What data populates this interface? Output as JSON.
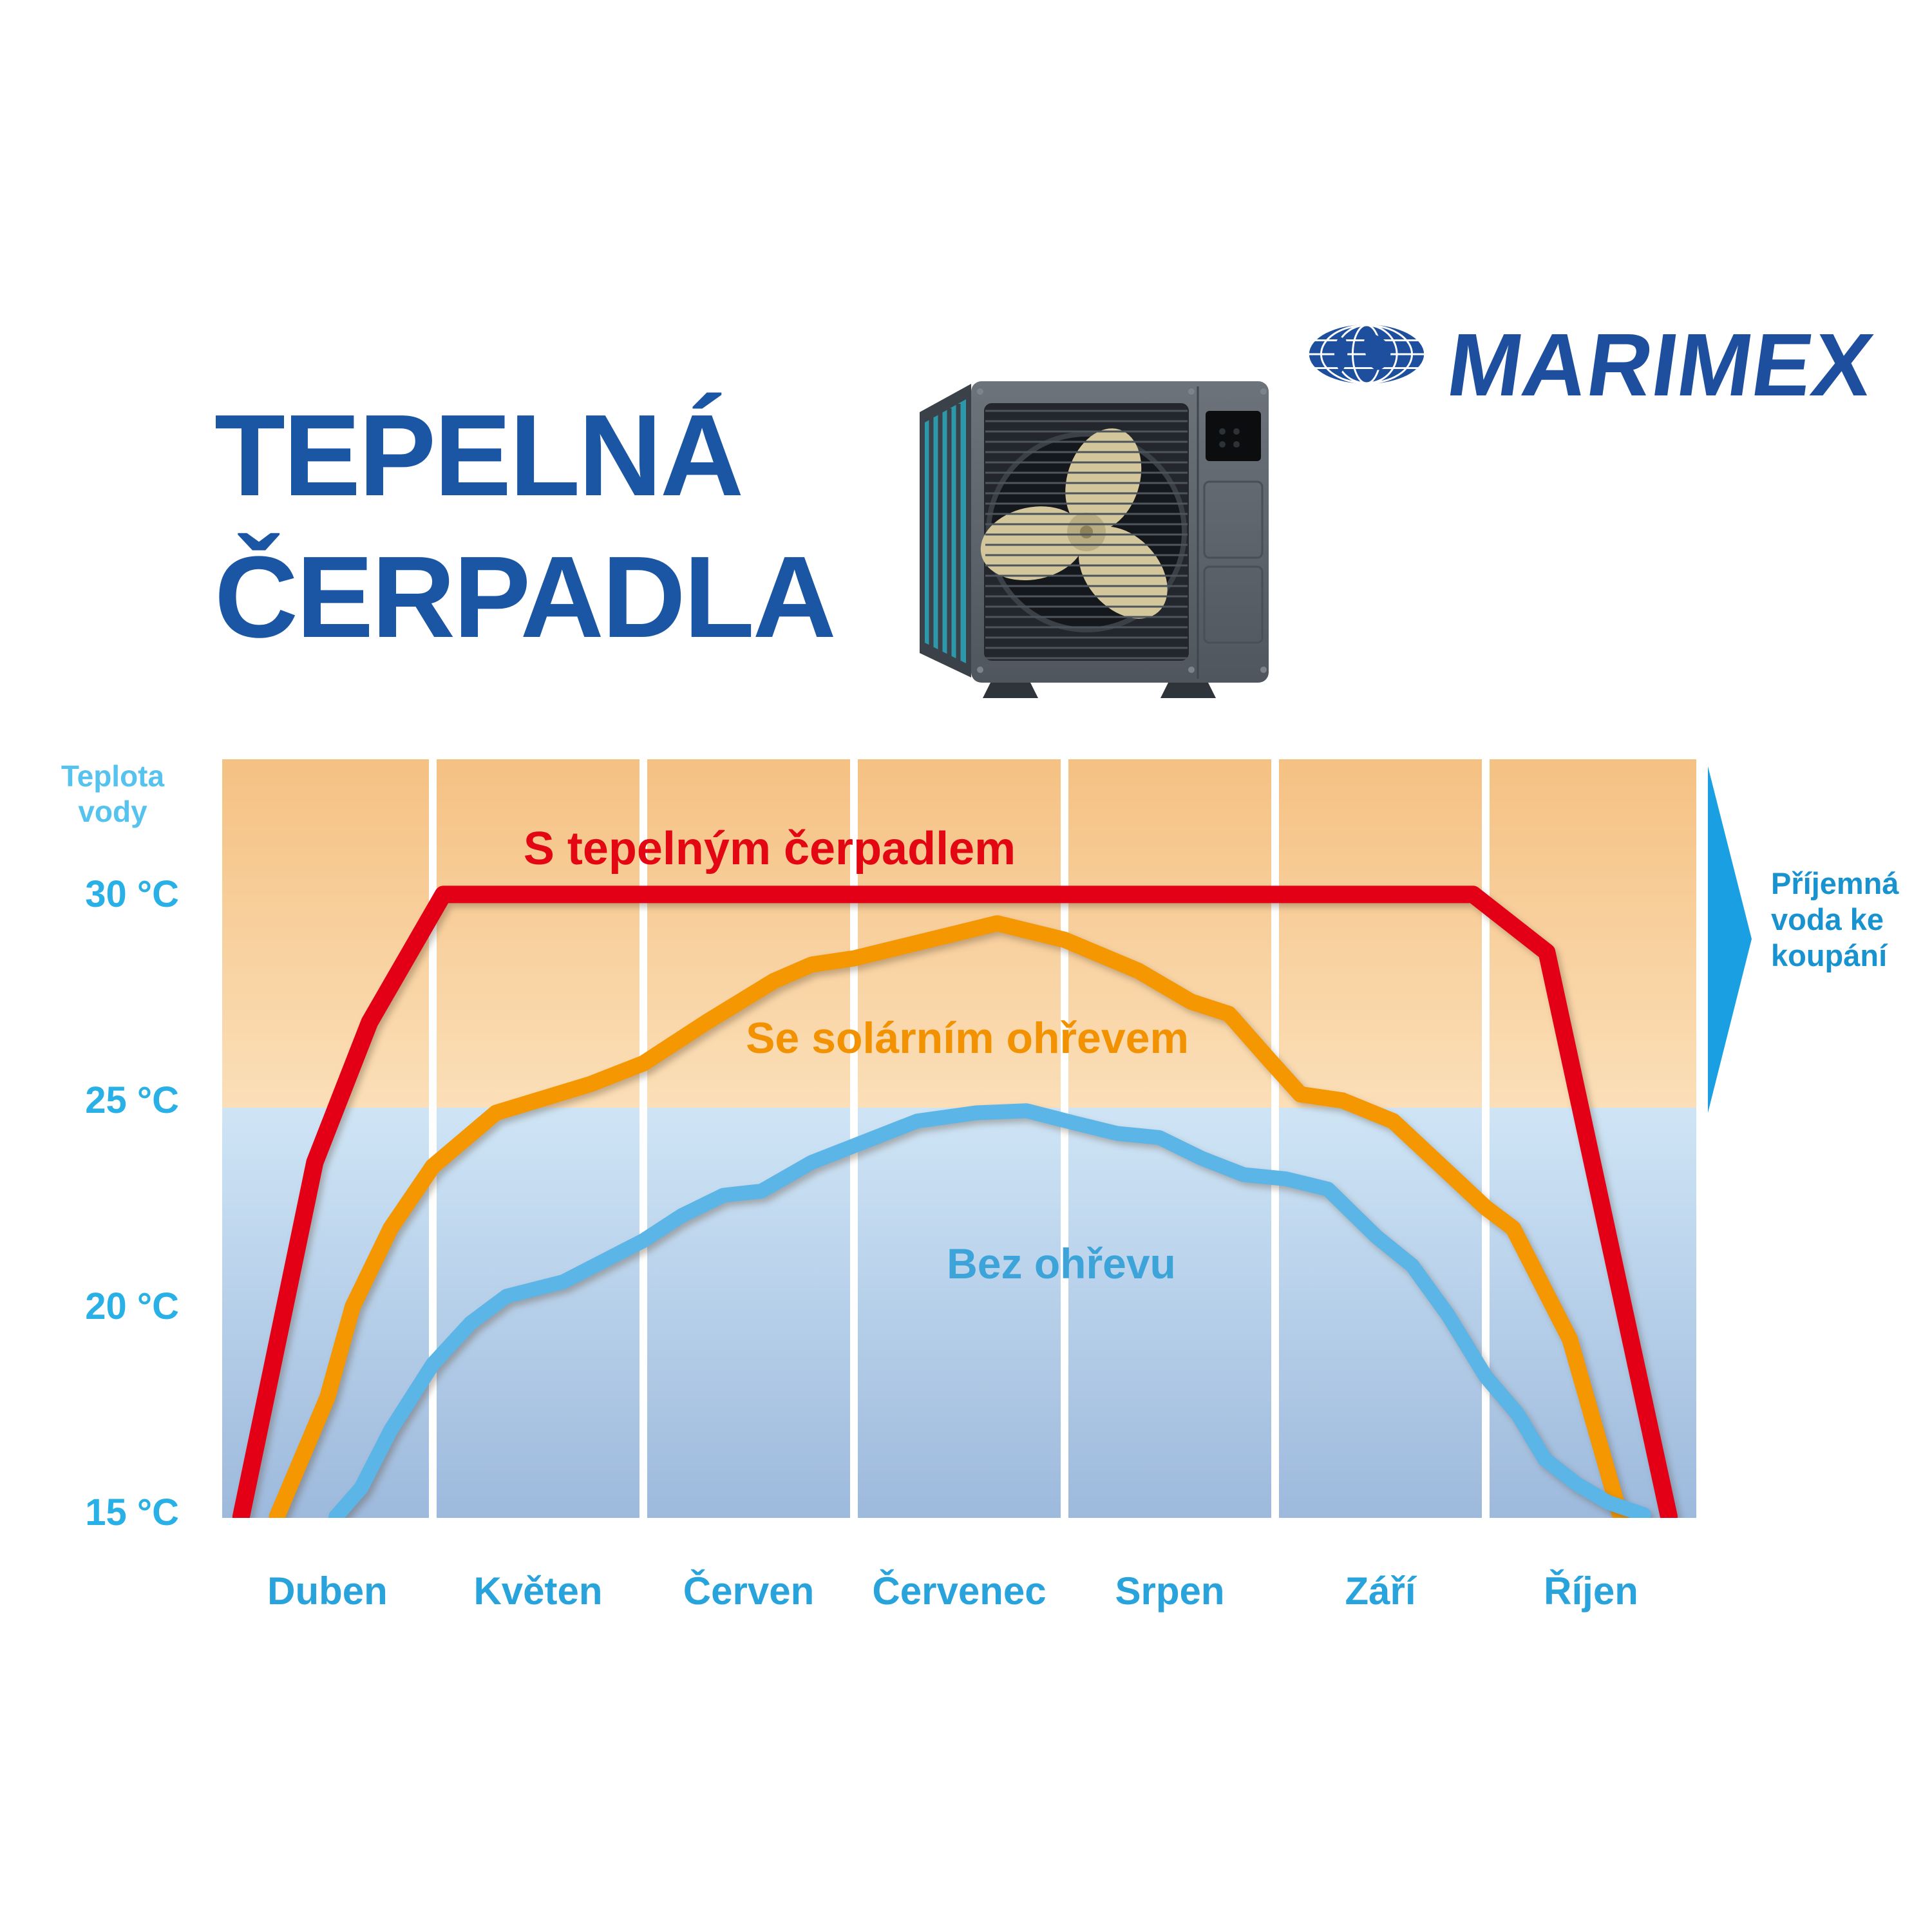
{
  "header": {
    "title_line1": "TEPELNÁ",
    "title_line2": "ČERPADLA",
    "title_color": "#1b56a4",
    "brand": "MARIMEX",
    "brand_color": "#1e4f9e"
  },
  "chart_data": {
    "type": "line",
    "title": "",
    "x_categories": [
      "Duben",
      "Květen",
      "Červen",
      "Červenec",
      "Srpen",
      "Září",
      "Říjen"
    ],
    "x_range_months": [
      0,
      7
    ],
    "y_axis": {
      "title_line1": "Teplota",
      "title_line2": "vody",
      "unit": "°C",
      "ticks": [
        {
          "label": "30 °C",
          "value": 30
        },
        {
          "label": "25 °C",
          "value": 25
        },
        {
          "label": "20 °C",
          "value": 20
        },
        {
          "label": "15 °C",
          "value": 15
        }
      ]
    },
    "y_range": [
      14.87,
      33.28
    ],
    "grid": "vertical-white-month-separators",
    "legend_position": "labels-on-chart",
    "background": {
      "boundary_temp": 24.83,
      "warm_top": "#f5c183",
      "warm_bottom": "#fbdfb8",
      "cool_top": "#cfe5f6",
      "cool_bottom": "#9db9dc"
    },
    "series": [
      {
        "name": "S tepelným čerpadlem",
        "color": "#e30016",
        "label_color": "#e30613",
        "stroke_width": 27,
        "points": [
          [
            0.09,
            14.9
          ],
          [
            0.44,
            23.5
          ],
          [
            0.7,
            26.9
          ],
          [
            1.05,
            30.0
          ],
          [
            3.5,
            30.0
          ],
          [
            5.94,
            30.0
          ],
          [
            6.29,
            28.6
          ],
          [
            6.87,
            14.9
          ]
        ]
      },
      {
        "name": "Se solárním ohřevem",
        "color": "#f49700",
        "label_color": "#f39200",
        "stroke_width": 25,
        "points": [
          [
            0.26,
            14.9
          ],
          [
            0.5,
            17.8
          ],
          [
            0.62,
            20.0
          ],
          [
            0.8,
            21.9
          ],
          [
            1.0,
            23.4
          ],
          [
            1.3,
            24.7
          ],
          [
            1.75,
            25.4
          ],
          [
            2.0,
            25.9
          ],
          [
            2.3,
            26.9
          ],
          [
            2.62,
            27.9
          ],
          [
            2.8,
            28.3
          ],
          [
            3.0,
            28.45
          ],
          [
            3.4,
            28.95
          ],
          [
            3.68,
            29.3
          ],
          [
            4.0,
            28.9
          ],
          [
            4.35,
            28.15
          ],
          [
            4.6,
            27.4
          ],
          [
            4.78,
            27.1
          ],
          [
            4.97,
            26.0
          ],
          [
            5.12,
            25.15
          ],
          [
            5.32,
            25.0
          ],
          [
            5.56,
            24.5
          ],
          [
            6.0,
            22.4
          ],
          [
            6.13,
            21.9
          ],
          [
            6.4,
            19.2
          ],
          [
            6.64,
            14.9
          ]
        ]
      },
      {
        "name": "Bez ohřevu",
        "color": "#5bb5e6",
        "label_color": "#3da4d9",
        "stroke_width": 23,
        "points": [
          [
            0.54,
            14.9
          ],
          [
            0.66,
            15.6
          ],
          [
            0.8,
            17.0
          ],
          [
            1.0,
            18.6
          ],
          [
            1.18,
            19.6
          ],
          [
            1.35,
            20.25
          ],
          [
            1.62,
            20.6
          ],
          [
            2.0,
            21.6
          ],
          [
            2.18,
            22.2
          ],
          [
            2.38,
            22.7
          ],
          [
            2.56,
            22.8
          ],
          [
            2.8,
            23.5
          ],
          [
            3.0,
            23.9
          ],
          [
            3.3,
            24.5
          ],
          [
            3.58,
            24.7
          ],
          [
            3.82,
            24.75
          ],
          [
            4.05,
            24.45
          ],
          [
            4.25,
            24.2
          ],
          [
            4.45,
            24.1
          ],
          [
            4.65,
            23.6
          ],
          [
            4.85,
            23.2
          ],
          [
            5.05,
            23.1
          ],
          [
            5.25,
            22.85
          ],
          [
            5.48,
            21.7
          ],
          [
            5.65,
            21.0
          ],
          [
            5.82,
            19.8
          ],
          [
            6.0,
            18.3
          ],
          [
            6.15,
            17.4
          ],
          [
            6.28,
            16.3
          ],
          [
            6.43,
            15.7
          ],
          [
            6.58,
            15.25
          ],
          [
            6.75,
            14.95
          ]
        ]
      }
    ],
    "annotation_arrow": {
      "lines": [
        "Příjemná",
        "voda ke",
        "koupání"
      ],
      "text_color": "#1893d0",
      "arrow_color": "#1aa0e2"
    }
  }
}
